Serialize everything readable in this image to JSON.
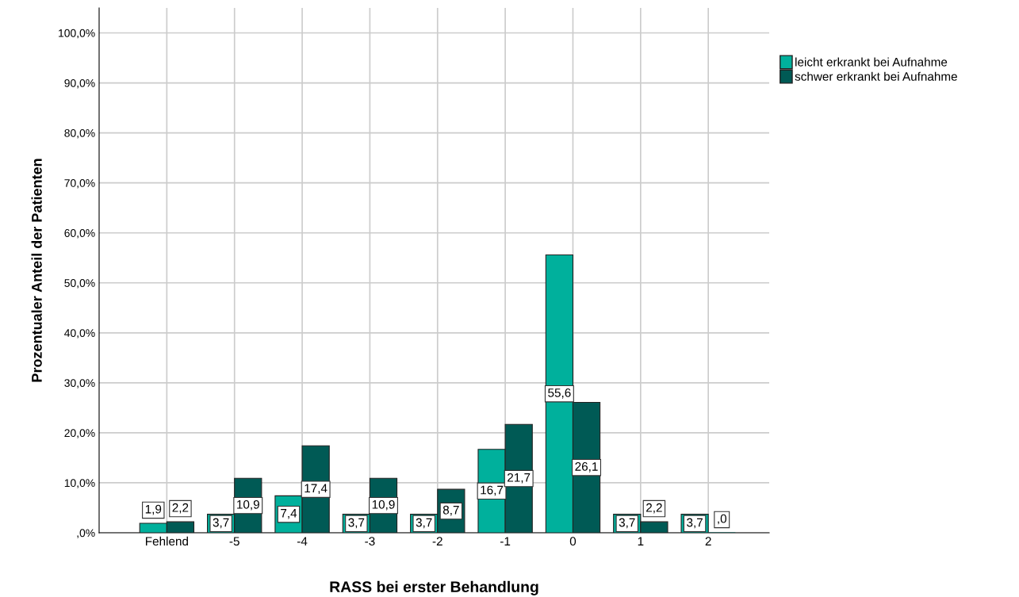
{
  "chart_data": {
    "type": "bar",
    "xlabel": "RASS bei erster Behandlung",
    "ylabel": "Prozentualer Anteil der Patienten",
    "categories": [
      "Fehlend",
      "-5",
      "-4",
      "-3",
      "-2",
      "-1",
      "0",
      "1",
      "2"
    ],
    "series": [
      {
        "name": "leicht erkrankt bei Aufnahme",
        "color": "#00b09c",
        "values": [
          1.9,
          3.7,
          7.4,
          3.7,
          3.7,
          16.7,
          55.6,
          3.7,
          3.7
        ],
        "value_labels": [
          "1,9",
          "3,7",
          "7,4",
          "3,7",
          "3,7",
          "16,7",
          "55,6",
          "3,7",
          "3,7"
        ]
      },
      {
        "name": "schwer erkrankt bei Aufnahme",
        "color": "#005a55",
        "values": [
          2.2,
          10.9,
          17.4,
          10.9,
          8.7,
          21.7,
          26.1,
          2.2,
          0
        ],
        "value_labels": [
          "2,2",
          "10,9",
          "17,4",
          "10,9",
          "8,7",
          "21,7",
          "26,1",
          "2,2",
          ",0"
        ]
      }
    ],
    "ylim": [
      0,
      105
    ],
    "yticks": [
      {
        "value": 0,
        "label": ",0%"
      },
      {
        "value": 10,
        "label": "10,0%"
      },
      {
        "value": 20,
        "label": "20,0%"
      },
      {
        "value": 30,
        "label": "30,0%"
      },
      {
        "value": 40,
        "label": "40,0%"
      },
      {
        "value": 50,
        "label": "50,0%"
      },
      {
        "value": 60,
        "label": "60,0%"
      },
      {
        "value": 70,
        "label": "70,0%"
      },
      {
        "value": 80,
        "label": "80,0%"
      },
      {
        "value": 90,
        "label": "90,0%"
      },
      {
        "value": 100,
        "label": "100,0%"
      }
    ],
    "grid": true,
    "legend": "top right"
  }
}
